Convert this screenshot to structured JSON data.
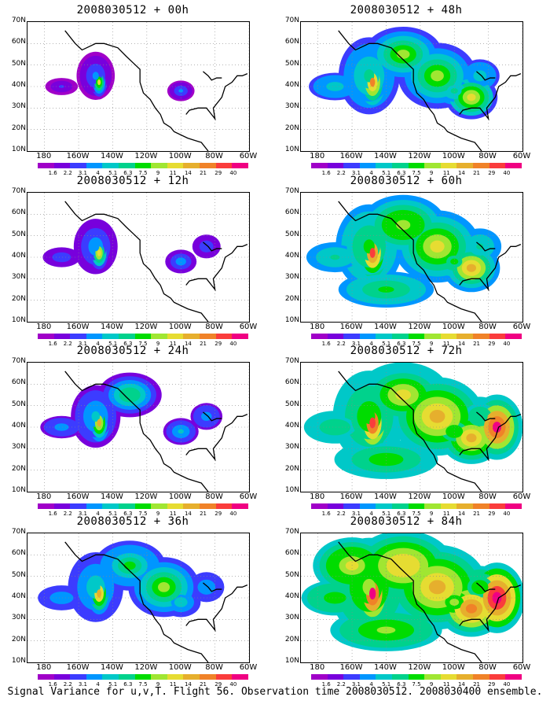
{
  "footer": "Signal Variance for u,v,T. Flight 56. Observation time 2008030512. 2008030400 ensemble.",
  "panels": [
    {
      "title": "2008030512 + 00h",
      "level": 0
    },
    {
      "title": "2008030512 + 48h",
      "level": 4
    },
    {
      "title": "2008030512 + 12h",
      "level": 1
    },
    {
      "title": "2008030512 + 60h",
      "level": 5
    },
    {
      "title": "2008030512 + 24h",
      "level": 2
    },
    {
      "title": "2008030512 + 72h",
      "level": 6
    },
    {
      "title": "2008030512 + 36h",
      "level": 3
    },
    {
      "title": "2008030512 + 84h",
      "level": 7
    }
  ],
  "axes": {
    "y_labels": [
      "70N",
      "60N",
      "50N",
      "40N",
      "30N",
      "20N",
      "10N"
    ],
    "x_labels": [
      "180",
      "160W",
      "140W",
      "120W",
      "100W",
      "80W",
      "60W"
    ]
  },
  "colorbar": {
    "labels": [
      "1.6",
      "2.2",
      "3.1",
      "4",
      "5.1",
      "6.3",
      "7.5",
      "9",
      "11",
      "14",
      "21",
      "29",
      "40"
    ],
    "colors": [
      "#a000c8",
      "#7800dc",
      "#3c3cff",
      "#0096ff",
      "#00c8c8",
      "#00d28c",
      "#00dc00",
      "#a0e632",
      "#e6dc32",
      "#e6af2d",
      "#f08228",
      "#fa3c3c",
      "#f00082"
    ]
  }
}
